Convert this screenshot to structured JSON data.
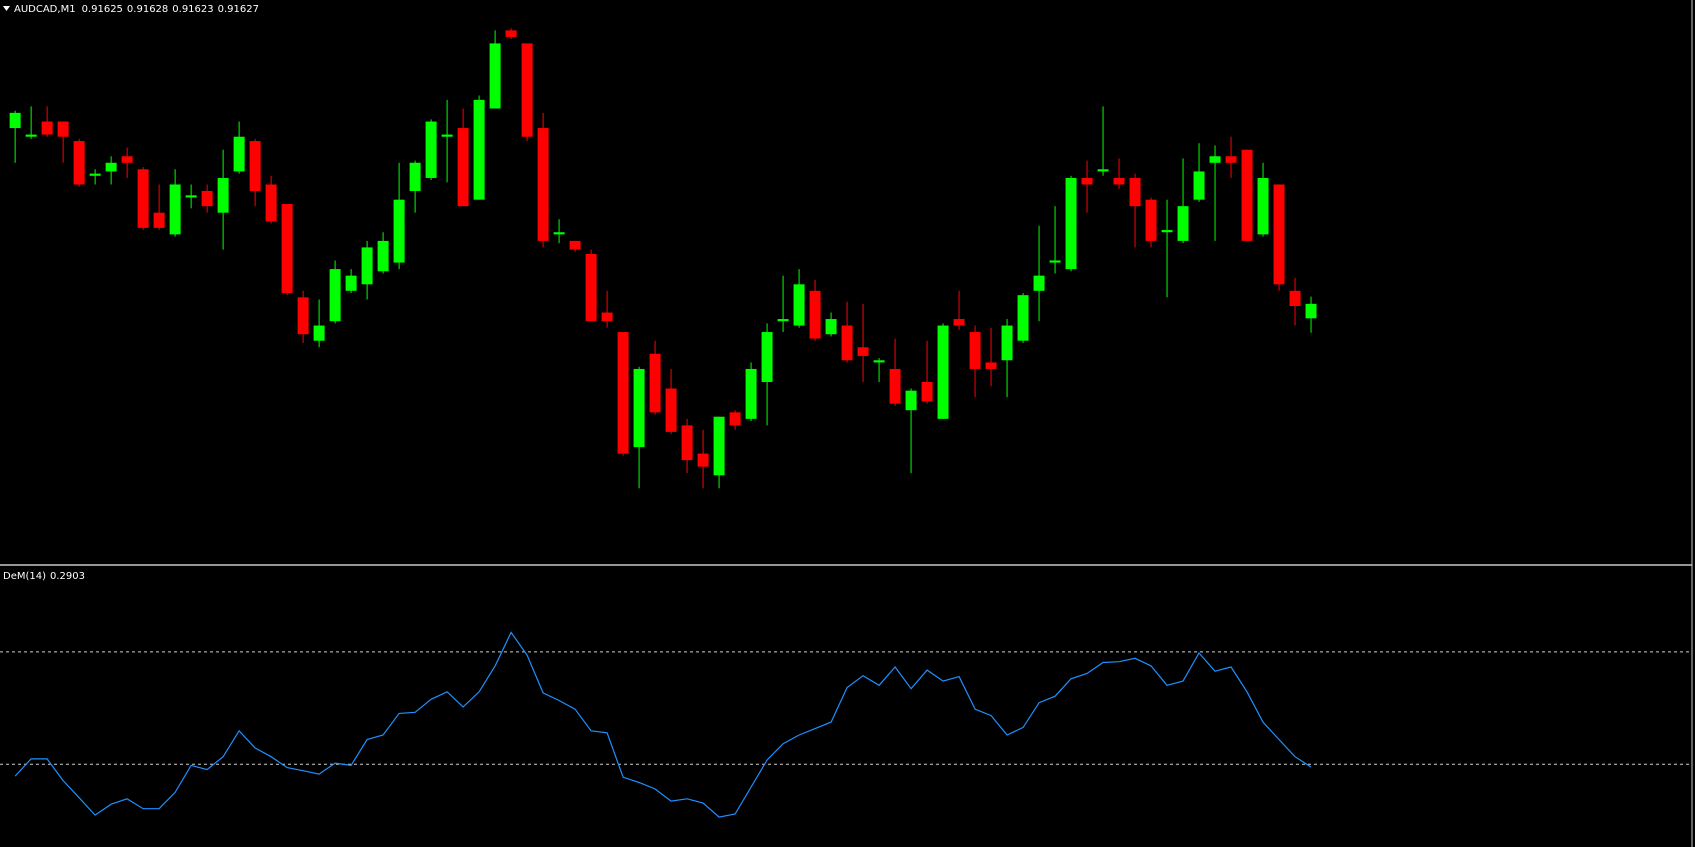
{
  "chart_data": [
    {
      "type": "candlestick",
      "title": "AUDCAD,M1",
      "up_color": "#00ff00",
      "down_color": "#ff0000",
      "ylim": [
        0.91591,
        0.91669
      ],
      "open": [
        0.916513,
        0.916501,
        0.916522,
        0.916522,
        0.916495,
        0.916447,
        0.916453,
        0.916474,
        0.916456,
        0.916396,
        0.916366,
        0.916417,
        0.916426,
        0.916396,
        0.916453,
        0.916495,
        0.916435,
        0.916408,
        0.916279,
        0.916219,
        0.916246,
        0.916288,
        0.916297,
        0.916315,
        0.916327,
        0.916426,
        0.916444,
        0.916501,
        0.916513,
        0.916414,
        0.91654,
        0.916648,
        0.91663,
        0.916513,
        0.916366,
        0.916357,
        0.916339,
        0.916258,
        0.916231,
        0.916072,
        0.916201,
        0.916153,
        0.916102,
        0.916063,
        0.916033,
        0.91612,
        0.916111,
        0.916162,
        0.916246,
        0.91624,
        0.916288,
        0.916228,
        0.91624,
        0.91621,
        0.916189,
        0.91618,
        0.916123,
        0.916162,
        0.916111,
        0.916249,
        0.916231,
        0.916189,
        0.916192,
        0.916219,
        0.916288,
        0.916327,
        0.916318,
        0.916444,
        0.916453,
        0.916444,
        0.916444,
        0.916414,
        0.916369,
        0.916357,
        0.916414,
        0.916465,
        0.916474,
        0.916483,
        0.916366,
        0.916435,
        0.916288,
        0.91625
      ],
      "high": [
        0.916537,
        0.916543,
        0.916543,
        0.916522,
        0.916498,
        0.916456,
        0.916474,
        0.916486,
        0.916459,
        0.916435,
        0.916456,
        0.916435,
        0.916435,
        0.916483,
        0.916522,
        0.916498,
        0.916447,
        0.916408,
        0.916288,
        0.916276,
        0.91633,
        0.916318,
        0.916357,
        0.916369,
        0.916465,
        0.916468,
        0.916525,
        0.916552,
        0.91654,
        0.916558,
        0.916648,
        0.916651,
        0.91663,
        0.916534,
        0.916387,
        0.916357,
        0.916345,
        0.916288,
        0.916231,
        0.916183,
        0.916219,
        0.91618,
        0.916111,
        0.916096,
        0.916114,
        0.916123,
        0.916189,
        0.916243,
        0.916309,
        0.916318,
        0.916303,
        0.916258,
        0.916273,
        0.91627,
        0.916195,
        0.916222,
        0.916153,
        0.916219,
        0.916243,
        0.916288,
        0.91624,
        0.916237,
        0.916249,
        0.916285,
        0.916378,
        0.916405,
        0.916447,
        0.916468,
        0.916543,
        0.916471,
        0.91645,
        0.916417,
        0.916414,
        0.916471,
        0.916492,
        0.916489,
        0.916501,
        0.916483,
        0.916465,
        0.916435,
        0.916306,
        0.91628
      ],
      "low": [
        0.916465,
        0.916498,
        0.916501,
        0.916465,
        0.916432,
        0.916435,
        0.916435,
        0.916444,
        0.916372,
        0.916372,
        0.916363,
        0.916402,
        0.916396,
        0.916345,
        0.91645,
        0.916405,
        0.916381,
        0.916282,
        0.916216,
        0.91621,
        0.916243,
        0.916285,
        0.916276,
        0.916312,
        0.916318,
        0.916396,
        0.916441,
        0.916438,
        0.916405,
        0.916414,
        0.91654,
        0.916636,
        0.916495,
        0.916348,
        0.916354,
        0.916342,
        0.916246,
        0.916237,
        0.91606,
        0.916015,
        0.916117,
        0.91609,
        0.916036,
        0.916015,
        0.916015,
        0.916096,
        0.916108,
        0.916102,
        0.916231,
        0.916237,
        0.916219,
        0.916225,
        0.916189,
        0.916162,
        0.916162,
        0.916129,
        0.916036,
        0.916132,
        0.916111,
        0.916234,
        0.916141,
        0.916156,
        0.916141,
        0.916216,
        0.916246,
        0.916312,
        0.916315,
        0.916396,
        0.916447,
        0.916429,
        0.916348,
        0.916348,
        0.916279,
        0.916354,
        0.916411,
        0.916357,
        0.916444,
        0.916357,
        0.916363,
        0.916288,
        0.91624,
        0.91623
      ],
      "close": [
        0.916534,
        0.916504,
        0.916504,
        0.916501,
        0.916435,
        0.91645,
        0.916465,
        0.916465,
        0.916375,
        0.916375,
        0.916435,
        0.91642,
        0.916405,
        0.916444,
        0.916501,
        0.916426,
        0.916384,
        0.916285,
        0.916228,
        0.91624,
        0.916318,
        0.916309,
        0.916348,
        0.916357,
        0.916414,
        0.916465,
        0.916522,
        0.916504,
        0.916405,
        0.916552,
        0.91663,
        0.916639,
        0.916501,
        0.916357,
        0.916369,
        0.916345,
        0.916246,
        0.916246,
        0.916063,
        0.91618,
        0.91612,
        0.916093,
        0.916054,
        0.916045,
        0.916114,
        0.916102,
        0.91618,
        0.916231,
        0.916249,
        0.916297,
        0.916222,
        0.916249,
        0.916192,
        0.916198,
        0.916192,
        0.916132,
        0.91615,
        0.916135,
        0.91624,
        0.91624,
        0.91618,
        0.91618,
        0.91624,
        0.916282,
        0.916309,
        0.91633,
        0.916444,
        0.916435,
        0.916456,
        0.916435,
        0.916405,
        0.916357,
        0.916372,
        0.916405,
        0.916453,
        0.916474,
        0.916465,
        0.916357,
        0.916444,
        0.916297,
        0.916267,
        0.91627
      ]
    },
    {
      "type": "line",
      "title": "DeM(14)",
      "color": "#1e90ff",
      "ylim": [
        0,
        1
      ],
      "levels": [
        0.3,
        0.7
      ],
      "values": [
        0.258,
        0.319,
        0.319,
        0.242,
        0.181,
        0.119,
        0.158,
        0.177,
        0.142,
        0.142,
        0.2,
        0.296,
        0.281,
        0.327,
        0.419,
        0.358,
        0.327,
        0.288,
        0.277,
        0.265,
        0.304,
        0.296,
        0.388,
        0.404,
        0.481,
        0.485,
        0.531,
        0.558,
        0.504,
        0.558,
        0.65,
        0.769,
        0.688,
        0.554,
        0.527,
        0.496,
        0.419,
        0.412,
        0.254,
        0.235,
        0.212,
        0.169,
        0.177,
        0.162,
        0.112,
        0.123,
        0.219,
        0.315,
        0.373,
        0.404,
        0.427,
        0.45,
        0.573,
        0.615,
        0.581,
        0.646,
        0.569,
        0.635,
        0.596,
        0.612,
        0.496,
        0.473,
        0.404,
        0.431,
        0.519,
        0.542,
        0.604,
        0.623,
        0.662,
        0.665,
        0.677,
        0.65,
        0.581,
        0.596,
        0.696,
        0.631,
        0.646,
        0.558,
        0.45,
        0.388,
        0.327,
        0.2903
      ]
    }
  ]
}
